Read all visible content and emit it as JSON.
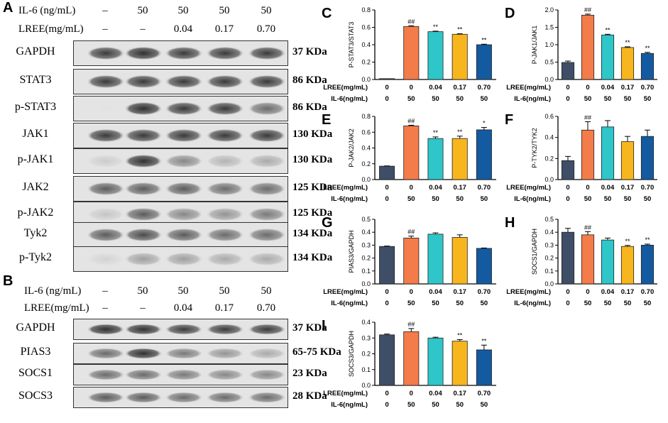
{
  "colors": {
    "bar": [
      "#3e4e66",
      "#f47b4a",
      "#2ec6c8",
      "#f7b51e",
      "#145aa0"
    ]
  },
  "panel_letters": [
    "A",
    "B",
    "C",
    "D",
    "E",
    "F",
    "G",
    "H",
    "I"
  ],
  "blotA": {
    "header_rows": [
      {
        "label": "IL-6 (ng/mL)",
        "values": [
          "–",
          "50",
          "50",
          "50",
          "50"
        ]
      },
      {
        "label": "LREE(mg/mL)",
        "values": [
          "–",
          "–",
          "0.04",
          "0.17",
          "0.70"
        ]
      }
    ],
    "rows": [
      {
        "label": "GAPDH",
        "kda": "37 KDa",
        "intensity": [
          0.85,
          0.9,
          0.85,
          0.85,
          0.85
        ]
      },
      {
        "label": "STAT3",
        "kda": "86 KDa",
        "intensity": [
          0.85,
          0.85,
          0.85,
          0.85,
          0.85
        ]
      },
      {
        "label": "p-STAT3",
        "kda": "86 KDa",
        "intensity": [
          0.0,
          0.9,
          0.85,
          0.85,
          0.7
        ]
      },
      {
        "label": "JAK1",
        "kda": "130 KDa",
        "intensity": [
          0.85,
          0.85,
          0.85,
          0.85,
          0.85
        ]
      },
      {
        "label": "p-JAK1",
        "kda": "130 KDa",
        "intensity": [
          0.25,
          0.9,
          0.6,
          0.4,
          0.45
        ]
      },
      {
        "label": "JAK2",
        "kda": "125 KDa",
        "intensity": [
          0.75,
          0.75,
          0.75,
          0.7,
          0.7
        ]
      },
      {
        "label": "p-JAK2",
        "kda": "125 KDa",
        "intensity": [
          0.3,
          0.75,
          0.6,
          0.55,
          0.65
        ]
      },
      {
        "label": "Tyk2",
        "kda": "134 KDa",
        "intensity": [
          0.75,
          0.8,
          0.75,
          0.7,
          0.7
        ]
      },
      {
        "label": "p-Tyk2",
        "kda": "134 KDa",
        "intensity": [
          0.2,
          0.5,
          0.5,
          0.45,
          0.45
        ]
      }
    ]
  },
  "blotB": {
    "header_rows": [
      {
        "label": "IL-6 (ng/mL)",
        "values": [
          "–",
          "50",
          "50",
          "50",
          "50"
        ]
      },
      {
        "label": "LREE(mg/mL)",
        "values": [
          "–",
          "–",
          "0.04",
          "0.17",
          "0.70"
        ]
      }
    ],
    "rows": [
      {
        "label": "GAPDH",
        "kda": "37 KDa",
        "intensity": [
          0.9,
          0.9,
          0.85,
          0.85,
          0.85
        ]
      },
      {
        "label": "PIAS3",
        "kda": "65-75 KDa",
        "intensity": [
          0.7,
          0.9,
          0.65,
          0.55,
          0.45
        ]
      },
      {
        "label": "SOCS1",
        "kda": "23 KDa",
        "intensity": [
          0.7,
          0.7,
          0.65,
          0.6,
          0.6
        ]
      },
      {
        "label": "SOCS3",
        "kda": "28 KDa",
        "intensity": [
          0.75,
          0.75,
          0.7,
          0.7,
          0.7
        ]
      }
    ]
  },
  "chart_data": [
    {
      "panel": "C",
      "type": "bar",
      "ylabel": "P-STAT3/STAT3",
      "ylim": [
        0,
        0.8
      ],
      "yticks": [
        "0.0",
        "0.2",
        "0.4",
        "0.6",
        "0.8"
      ],
      "values": [
        0.01,
        0.61,
        0.55,
        0.52,
        0.4
      ],
      "errors": [
        0.0,
        0.008,
        0.006,
        0.006,
        0.006
      ],
      "annotations": [
        "",
        "##",
        "**",
        "**",
        "**"
      ],
      "lree": [
        "0",
        "0",
        "0.04",
        "0.17",
        "0.70"
      ],
      "il6": [
        "0",
        "50",
        "50",
        "50",
        "50"
      ],
      "lree_label": "LREE(mg/mL)",
      "il6_label": "IL-6(ng/mL)"
    },
    {
      "panel": "D",
      "type": "bar",
      "ylabel": "P-JAK1/JAK1",
      "ylim": [
        0,
        2.0
      ],
      "yticks": [
        "0.0",
        "0.5",
        "1.0",
        "1.5",
        "2.0"
      ],
      "values": [
        0.49,
        1.85,
        1.28,
        0.92,
        0.75
      ],
      "errors": [
        0.04,
        0.03,
        0.02,
        0.02,
        0.03
      ],
      "annotations": [
        "",
        "##",
        "**",
        "**",
        "**"
      ],
      "lree": [
        "0",
        "0",
        "0.04",
        "0.17",
        "0.70"
      ],
      "il6": [
        "0",
        "50",
        "50",
        "50",
        "50"
      ],
      "lree_label": "LREE(mg/mL)",
      "il6_label": "IL-6(ng/mL)"
    },
    {
      "panel": "E",
      "type": "bar",
      "ylabel": "P-JAK2/JAK2",
      "ylim": [
        0,
        0.8
      ],
      "yticks": [
        "0.0",
        "0.2",
        "0.4",
        "0.6",
        "0.8"
      ],
      "values": [
        0.17,
        0.68,
        0.52,
        0.52,
        0.63
      ],
      "errors": [
        0.003,
        0.008,
        0.02,
        0.03,
        0.03
      ],
      "annotations": [
        "",
        "##",
        "**",
        "**",
        "*"
      ],
      "lree": [
        "0",
        "0",
        "0.04",
        "0.17",
        "0.70"
      ],
      "il6": [
        "0",
        "50",
        "50",
        "50",
        "50"
      ],
      "lree_label": "LREE(mg/mL)",
      "il6_label": "IL-6(ng/mL)"
    },
    {
      "panel": "F",
      "type": "bar",
      "ylabel": "P-TYK2/TYK2",
      "ylim": [
        0,
        0.6
      ],
      "yticks": [
        "0.0",
        "0.2",
        "0.4",
        "0.6"
      ],
      "values": [
        0.18,
        0.47,
        0.5,
        0.36,
        0.41
      ],
      "errors": [
        0.04,
        0.08,
        0.06,
        0.05,
        0.06
      ],
      "annotations": [
        "",
        "##",
        "",
        "",
        ""
      ],
      "lree": [
        "0",
        "0",
        "0.04",
        "0.17",
        "0.70"
      ],
      "il6": [
        "0",
        "50",
        "50",
        "50",
        "50"
      ],
      "lree_label": "LREE(mg/mL)",
      "il6_label": "IL-6(ng/mL)"
    },
    {
      "panel": "G",
      "type": "bar",
      "ylabel": "PIAS3/GAPDH",
      "ylim": [
        0,
        0.5
      ],
      "yticks": [
        "0.0",
        "0.1",
        "0.2",
        "0.3",
        "0.4",
        "0.5"
      ],
      "values": [
        0.29,
        0.355,
        0.385,
        0.36,
        0.275
      ],
      "errors": [
        0.003,
        0.015,
        0.01,
        0.02,
        0.003
      ],
      "annotations": [
        "",
        "##",
        "",
        "",
        ""
      ],
      "lree": [
        "0",
        "0",
        "0.04",
        "0.17",
        "0.70"
      ],
      "il6": [
        "0",
        "50",
        "50",
        "50",
        "50"
      ],
      "lree_label": "LREE(mg/mL)",
      "il6_label": "IL-6(ng/mL)"
    },
    {
      "panel": "H",
      "type": "bar",
      "ylabel": "SOCS1/GAPDH",
      "ylim": [
        0,
        0.5
      ],
      "yticks": [
        "0.0",
        "0.1",
        "0.2",
        "0.3",
        "0.4",
        "0.5"
      ],
      "values": [
        0.4,
        0.38,
        0.34,
        0.29,
        0.3
      ],
      "errors": [
        0.03,
        0.025,
        0.015,
        0.008,
        0.008
      ],
      "annotations": [
        "",
        "##",
        "",
        "**",
        "**"
      ],
      "lree": [
        "0",
        "0",
        "0.04",
        "0.17",
        "0.70"
      ],
      "il6": [
        "0",
        "50",
        "50",
        "50",
        "50"
      ],
      "lree_label": "LREE(mg/mL)",
      "il6_label": "IL-6(ng/mL)"
    },
    {
      "panel": "I",
      "type": "bar",
      "ylabel": "SOCS3/GAPDH",
      "ylim": [
        0,
        0.4
      ],
      "yticks": [
        "0.0",
        "0.1",
        "0.2",
        "0.3",
        "0.4"
      ],
      "values": [
        0.32,
        0.34,
        0.3,
        0.28,
        0.225
      ],
      "errors": [
        0.005,
        0.02,
        0.005,
        0.01,
        0.03
      ],
      "annotations": [
        "",
        "##",
        "",
        "**",
        "**"
      ],
      "lree": [
        "0",
        "0",
        "0.04",
        "0.17",
        "0.70"
      ],
      "il6": [
        "0",
        "50",
        "50",
        "50",
        "50"
      ],
      "lree_label": "LREE(mg/mL)",
      "il6_label": "IL-6(ng/mL)"
    }
  ]
}
